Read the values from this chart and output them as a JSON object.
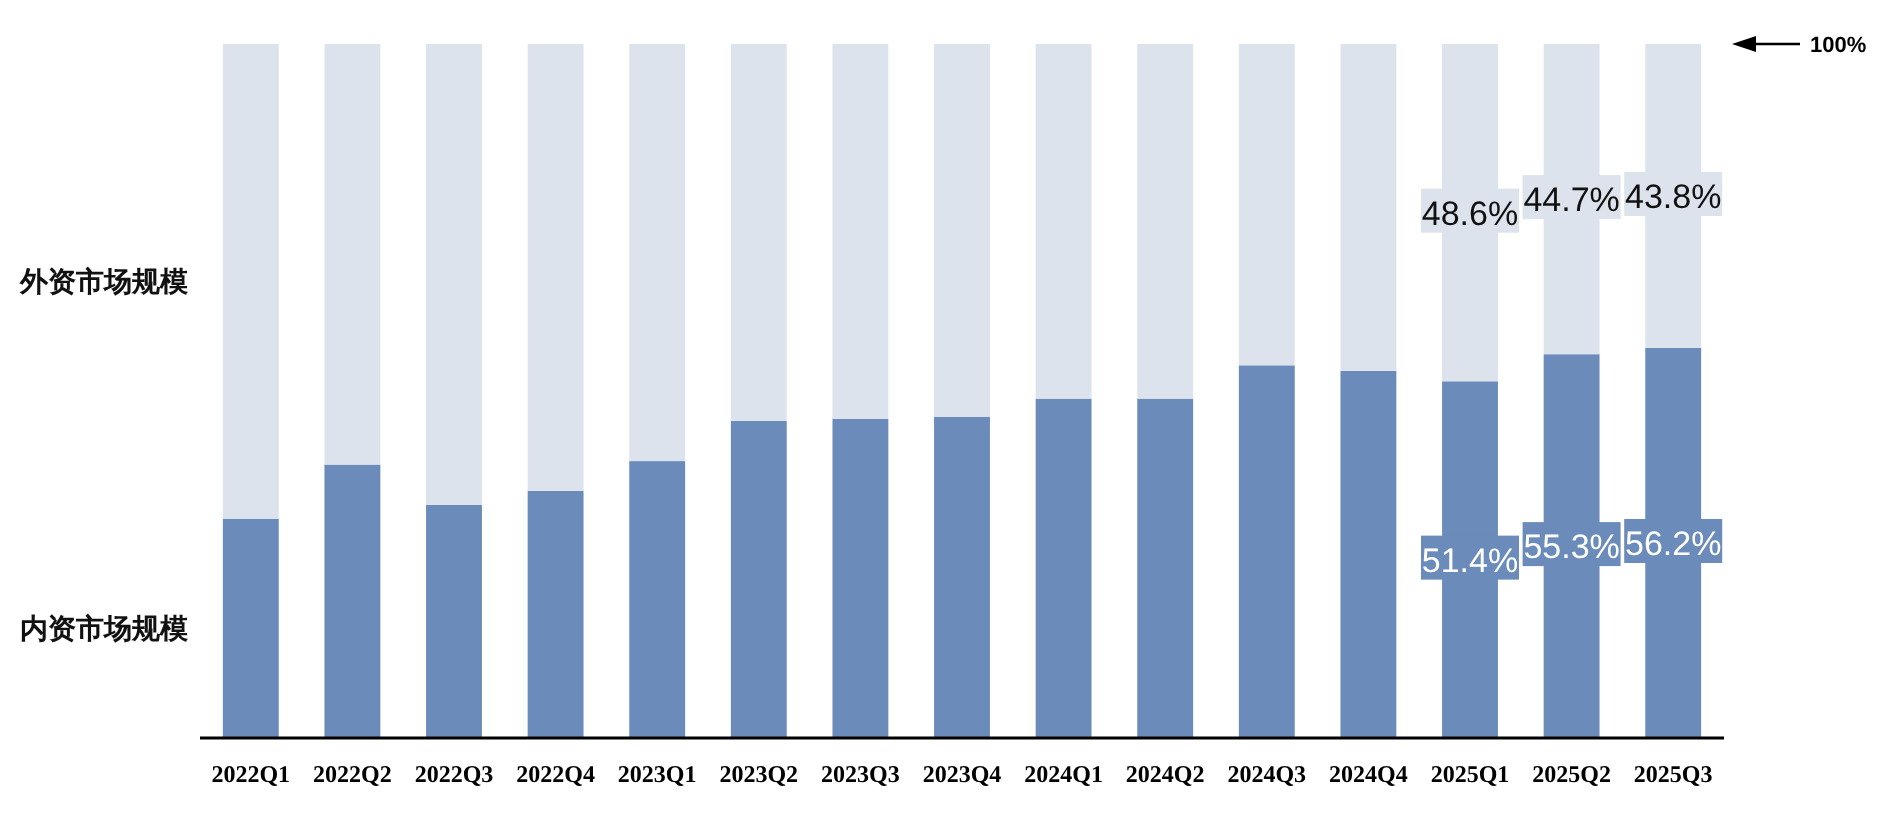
{
  "chart_data": {
    "type": "bar",
    "stacked": true,
    "legend": false,
    "tick_labels": "x",
    "ylim": [
      0,
      100
    ],
    "categories": [
      "2022Q1",
      "2022Q2",
      "2022Q3",
      "2022Q4",
      "2023Q1",
      "2023Q2",
      "2023Q3",
      "2023Q4",
      "2024Q1",
      "2024Q2",
      "2024Q3",
      "2024Q4",
      "2025Q1",
      "2025Q2",
      "2025Q3"
    ],
    "series": [
      {
        "name": "内资市场规模",
        "color": "#6b8cba",
        "values": [
          31.6,
          39.4,
          33.6,
          35.6,
          39.9,
          45.7,
          46.0,
          46.3,
          48.9,
          48.9,
          53.7,
          52.9,
          51.4,
          55.3,
          56.2
        ],
        "value_labels": [
          null,
          null,
          null,
          null,
          null,
          null,
          null,
          null,
          null,
          null,
          null,
          null,
          "51.4%",
          "55.3%",
          "56.2%"
        ]
      },
      {
        "name": "外资市场规模",
        "color": "#dde3ec",
        "values": [
          68.4,
          60.6,
          66.4,
          64.4,
          60.1,
          54.3,
          54.0,
          53.7,
          51.1,
          51.1,
          46.3,
          47.1,
          48.6,
          44.7,
          43.8
        ],
        "value_labels": [
          null,
          null,
          null,
          null,
          null,
          null,
          null,
          null,
          null,
          null,
          null,
          null,
          "48.6%",
          "44.7%",
          "43.8%"
        ]
      }
    ],
    "annotations": [
      "100%"
    ]
  }
}
